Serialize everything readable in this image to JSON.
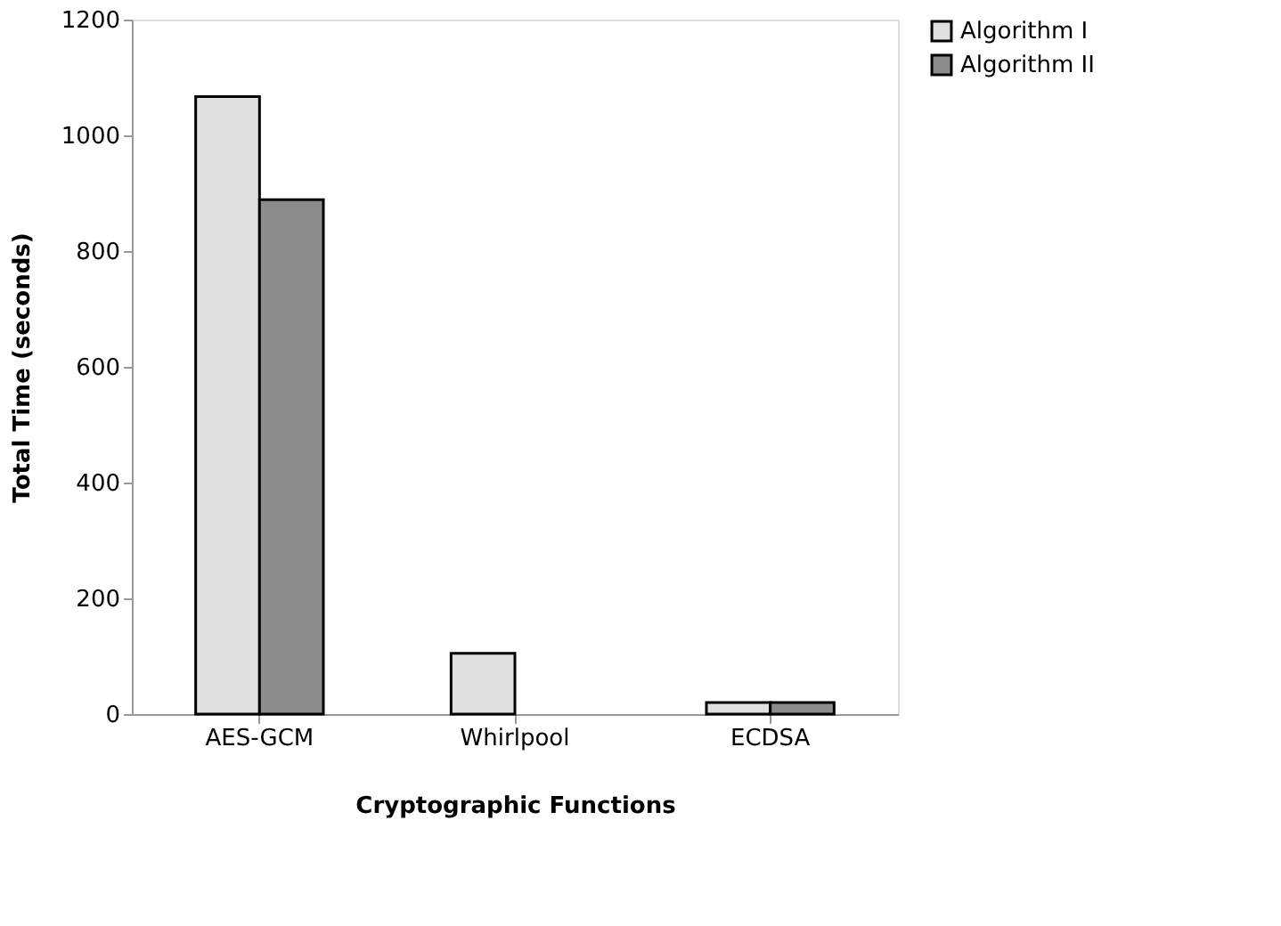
{
  "chart_data": {
    "type": "bar",
    "xlabel": "Cryptographic Functions",
    "ylabel": "Total  Time (seconds)",
    "categories": [
      "AES-GCM",
      "Whirlpool",
      "ECDSA"
    ],
    "series": [
      {
        "name": "Algorithm I",
        "color": "#e0e0e0",
        "values": [
          1067,
          105,
          20
        ]
      },
      {
        "name": "Algorithm II",
        "color": "#8c8c8c",
        "values": [
          889,
          null,
          20
        ]
      }
    ],
    "ylim": [
      0,
      1200
    ],
    "yticks": [
      0,
      200,
      400,
      600,
      800,
      1000,
      1200
    ],
    "grid": false,
    "legend": "right"
  }
}
